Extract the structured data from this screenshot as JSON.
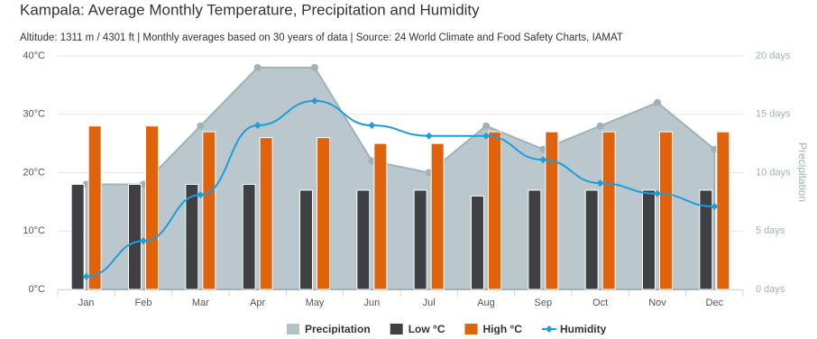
{
  "chart_data": {
    "type": "combo",
    "title": "Kampala: Average Monthly Temperature, Precipitation and Humidity",
    "subtitle": "Altitude: 1311 m / 4301 ft | Monthly averages based on 30 years of data | Source: 24 World Climate and Food Safety Charts, IAMAT",
    "categories": [
      "Jan",
      "Feb",
      "Mar",
      "Apr",
      "May",
      "Jun",
      "Jul",
      "Aug",
      "Sep",
      "Oct",
      "Nov",
      "Dec"
    ],
    "ylim": [
      0,
      40
    ],
    "yticks": [
      {
        "value": 0,
        "label": "0°C"
      },
      {
        "value": 10,
        "label": "10°C"
      },
      {
        "value": 20,
        "label": "20°C"
      },
      {
        "value": 30,
        "label": "30°C"
      },
      {
        "value": 40,
        "label": "40°C"
      }
    ],
    "y2lim": [
      0,
      20
    ],
    "y2ticks": [
      {
        "value": 0,
        "label": "0 days"
      },
      {
        "value": 5,
        "label": "5 days"
      },
      {
        "value": 10,
        "label": "10 days"
      },
      {
        "value": 15,
        "label": "15 days"
      },
      {
        "value": 20,
        "label": "20 days"
      }
    ],
    "y2label": "Precipitation",
    "grid": true,
    "legend": "bottom",
    "series": [
      {
        "name": "Precipitation",
        "type": "area",
        "axis": "y2",
        "color": "#b2c2c8",
        "values": [
          9,
          9,
          14,
          19,
          19,
          11,
          10,
          14,
          12,
          14,
          16,
          12
        ]
      },
      {
        "name": "Low °C",
        "type": "bar",
        "color": "#3f4044",
        "values": [
          18,
          18,
          18,
          18,
          17,
          17,
          17,
          16,
          17,
          17,
          17,
          17
        ]
      },
      {
        "name": "High °C",
        "type": "bar",
        "color": "#e0630b",
        "values": [
          28,
          28,
          27,
          26,
          26,
          25,
          25,
          27,
          27,
          27,
          27,
          27
        ]
      },
      {
        "name": "Humidity",
        "type": "line",
        "color": "#1e9ddb",
        "values": [
          2.2,
          8.3,
          16.2,
          28.1,
          32.3,
          28.1,
          26.3,
          26.3,
          22.2,
          18.2,
          16.4,
          14.2
        ]
      }
    ]
  }
}
